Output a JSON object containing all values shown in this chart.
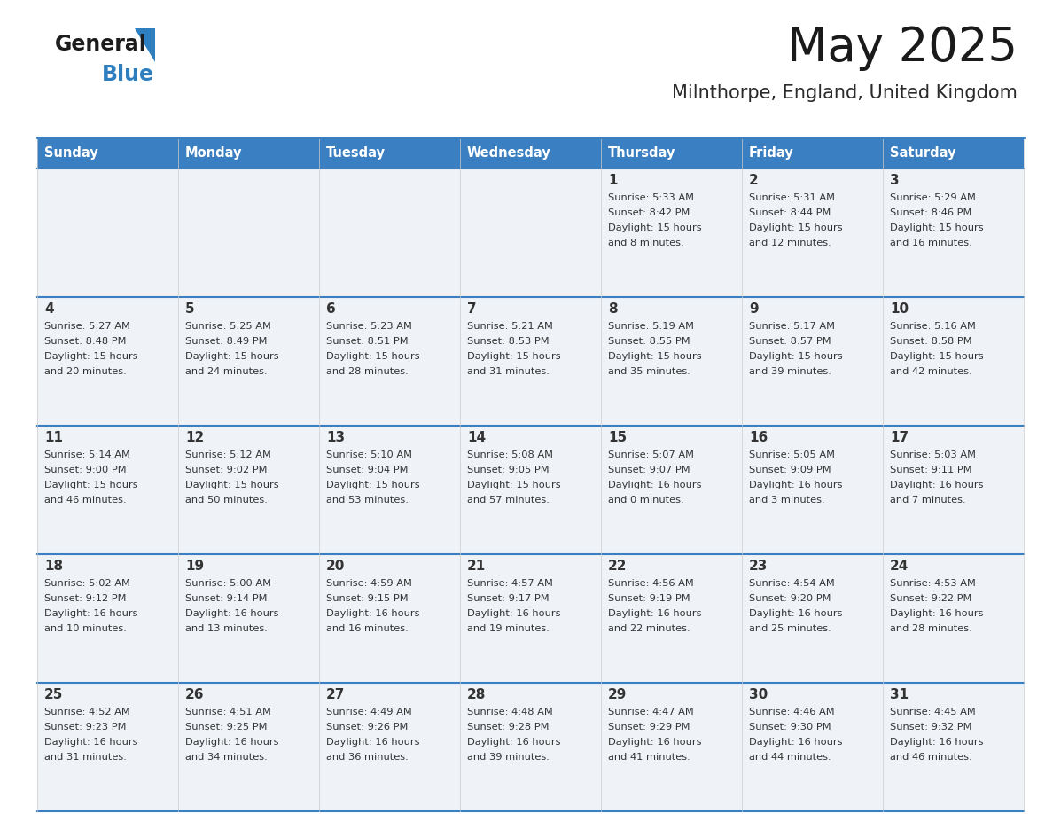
{
  "title": "May 2025",
  "subtitle": "Milnthorpe, England, United Kingdom",
  "days_of_week": [
    "Sunday",
    "Monday",
    "Tuesday",
    "Wednesday",
    "Thursday",
    "Friday",
    "Saturday"
  ],
  "header_bg": "#3a7fc1",
  "header_text": "#ffffff",
  "row_bg": "#eff3f8",
  "separator_color": "#3a7fc1",
  "title_color": "#1a1a1a",
  "subtitle_color": "#2a2a2a",
  "day_number_color": "#333333",
  "cell_text_color": "#333333",
  "calendar_data": [
    [
      null,
      null,
      null,
      null,
      {
        "day": 1,
        "sunrise": "5:33 AM",
        "sunset": "8:42 PM",
        "daylight": "15 hours",
        "daylight2": "and 8 minutes."
      },
      {
        "day": 2,
        "sunrise": "5:31 AM",
        "sunset": "8:44 PM",
        "daylight": "15 hours",
        "daylight2": "and 12 minutes."
      },
      {
        "day": 3,
        "sunrise": "5:29 AM",
        "sunset": "8:46 PM",
        "daylight": "15 hours",
        "daylight2": "and 16 minutes."
      }
    ],
    [
      {
        "day": 4,
        "sunrise": "5:27 AM",
        "sunset": "8:48 PM",
        "daylight": "15 hours",
        "daylight2": "and 20 minutes."
      },
      {
        "day": 5,
        "sunrise": "5:25 AM",
        "sunset": "8:49 PM",
        "daylight": "15 hours",
        "daylight2": "and 24 minutes."
      },
      {
        "day": 6,
        "sunrise": "5:23 AM",
        "sunset": "8:51 PM",
        "daylight": "15 hours",
        "daylight2": "and 28 minutes."
      },
      {
        "day": 7,
        "sunrise": "5:21 AM",
        "sunset": "8:53 PM",
        "daylight": "15 hours",
        "daylight2": "and 31 minutes."
      },
      {
        "day": 8,
        "sunrise": "5:19 AM",
        "sunset": "8:55 PM",
        "daylight": "15 hours",
        "daylight2": "and 35 minutes."
      },
      {
        "day": 9,
        "sunrise": "5:17 AM",
        "sunset": "8:57 PM",
        "daylight": "15 hours",
        "daylight2": "and 39 minutes."
      },
      {
        "day": 10,
        "sunrise": "5:16 AM",
        "sunset": "8:58 PM",
        "daylight": "15 hours",
        "daylight2": "and 42 minutes."
      }
    ],
    [
      {
        "day": 11,
        "sunrise": "5:14 AM",
        "sunset": "9:00 PM",
        "daylight": "15 hours",
        "daylight2": "and 46 minutes."
      },
      {
        "day": 12,
        "sunrise": "5:12 AM",
        "sunset": "9:02 PM",
        "daylight": "15 hours",
        "daylight2": "and 50 minutes."
      },
      {
        "day": 13,
        "sunrise": "5:10 AM",
        "sunset": "9:04 PM",
        "daylight": "15 hours",
        "daylight2": "and 53 minutes."
      },
      {
        "day": 14,
        "sunrise": "5:08 AM",
        "sunset": "9:05 PM",
        "daylight": "15 hours",
        "daylight2": "and 57 minutes."
      },
      {
        "day": 15,
        "sunrise": "5:07 AM",
        "sunset": "9:07 PM",
        "daylight": "16 hours",
        "daylight2": "and 0 minutes."
      },
      {
        "day": 16,
        "sunrise": "5:05 AM",
        "sunset": "9:09 PM",
        "daylight": "16 hours",
        "daylight2": "and 3 minutes."
      },
      {
        "day": 17,
        "sunrise": "5:03 AM",
        "sunset": "9:11 PM",
        "daylight": "16 hours",
        "daylight2": "and 7 minutes."
      }
    ],
    [
      {
        "day": 18,
        "sunrise": "5:02 AM",
        "sunset": "9:12 PM",
        "daylight": "16 hours",
        "daylight2": "and 10 minutes."
      },
      {
        "day": 19,
        "sunrise": "5:00 AM",
        "sunset": "9:14 PM",
        "daylight": "16 hours",
        "daylight2": "and 13 minutes."
      },
      {
        "day": 20,
        "sunrise": "4:59 AM",
        "sunset": "9:15 PM",
        "daylight": "16 hours",
        "daylight2": "and 16 minutes."
      },
      {
        "day": 21,
        "sunrise": "4:57 AM",
        "sunset": "9:17 PM",
        "daylight": "16 hours",
        "daylight2": "and 19 minutes."
      },
      {
        "day": 22,
        "sunrise": "4:56 AM",
        "sunset": "9:19 PM",
        "daylight": "16 hours",
        "daylight2": "and 22 minutes."
      },
      {
        "day": 23,
        "sunrise": "4:54 AM",
        "sunset": "9:20 PM",
        "daylight": "16 hours",
        "daylight2": "and 25 minutes."
      },
      {
        "day": 24,
        "sunrise": "4:53 AM",
        "sunset": "9:22 PM",
        "daylight": "16 hours",
        "daylight2": "and 28 minutes."
      }
    ],
    [
      {
        "day": 25,
        "sunrise": "4:52 AM",
        "sunset": "9:23 PM",
        "daylight": "16 hours",
        "daylight2": "and 31 minutes."
      },
      {
        "day": 26,
        "sunrise": "4:51 AM",
        "sunset": "9:25 PM",
        "daylight": "16 hours",
        "daylight2": "and 34 minutes."
      },
      {
        "day": 27,
        "sunrise": "4:49 AM",
        "sunset": "9:26 PM",
        "daylight": "16 hours",
        "daylight2": "and 36 minutes."
      },
      {
        "day": 28,
        "sunrise": "4:48 AM",
        "sunset": "9:28 PM",
        "daylight": "16 hours",
        "daylight2": "and 39 minutes."
      },
      {
        "day": 29,
        "sunrise": "4:47 AM",
        "sunset": "9:29 PM",
        "daylight": "16 hours",
        "daylight2": "and 41 minutes."
      },
      {
        "day": 30,
        "sunrise": "4:46 AM",
        "sunset": "9:30 PM",
        "daylight": "16 hours",
        "daylight2": "and 44 minutes."
      },
      {
        "day": 31,
        "sunrise": "4:45 AM",
        "sunset": "9:32 PM",
        "daylight": "16 hours",
        "daylight2": "and 46 minutes."
      }
    ]
  ]
}
